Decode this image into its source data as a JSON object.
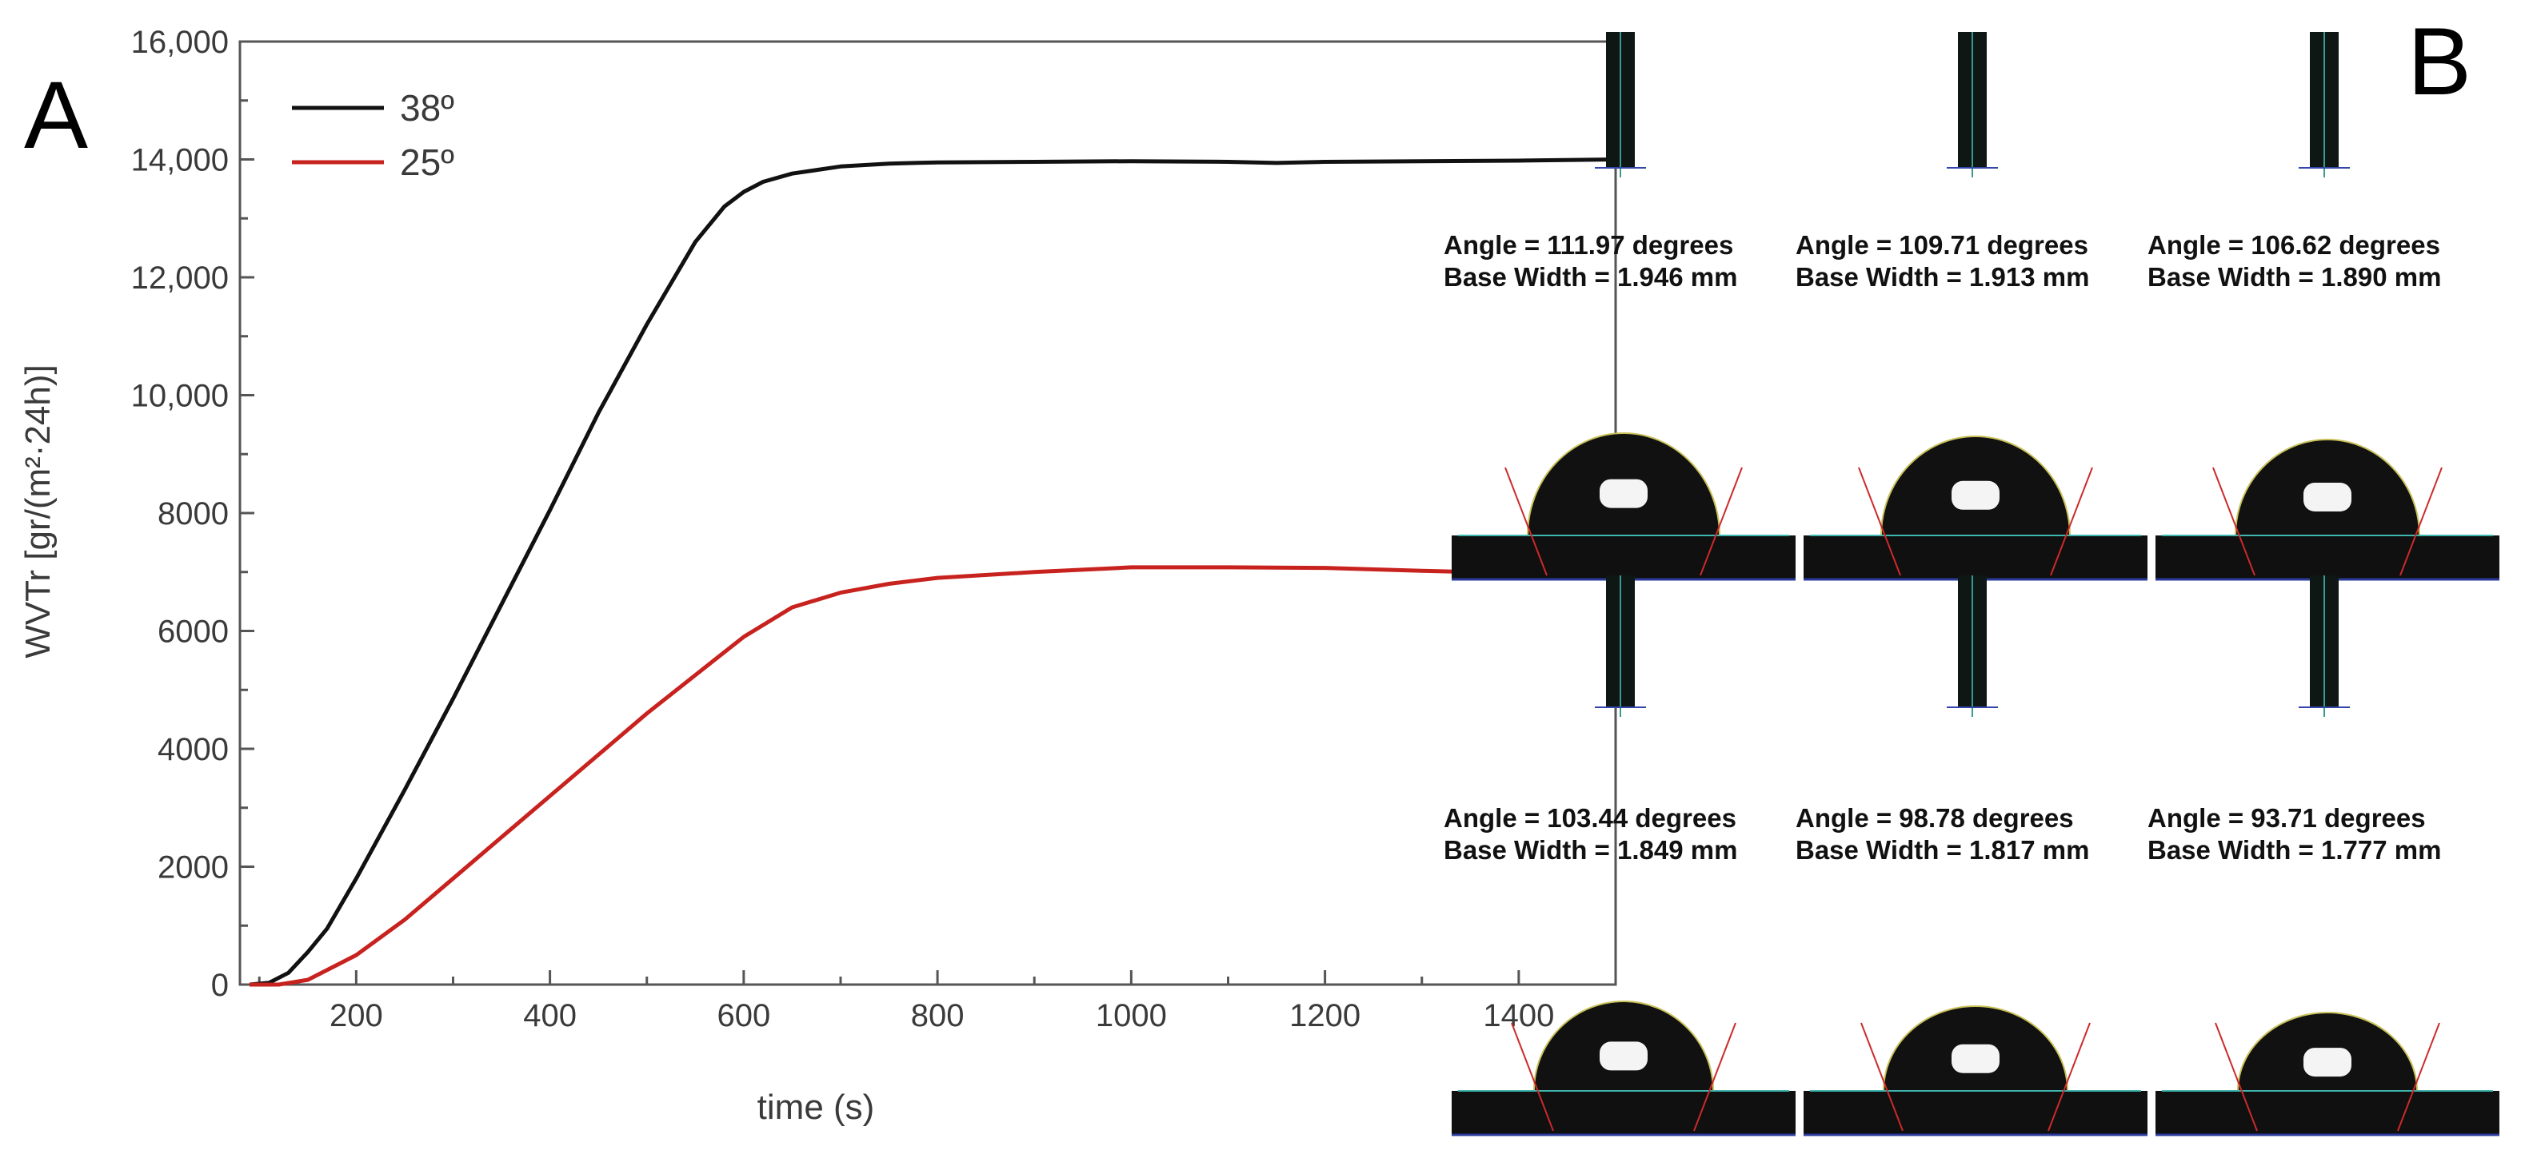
{
  "panels": {
    "a_label": "A",
    "b_label": "B"
  },
  "chart_data": {
    "type": "line",
    "title": "",
    "xlabel": "time (s)",
    "ylabel": "WVTr [gr/(m²·24h)]",
    "xlim": [
      80,
      1500
    ],
    "ylim": [
      0,
      16000
    ],
    "x_ticks": [
      200,
      400,
      600,
      800,
      1000,
      1200,
      1400
    ],
    "x_tick_labels": [
      "200",
      "400",
      "600",
      "800",
      "1000",
      "1200",
      "1400"
    ],
    "y_ticks": [
      0,
      2000,
      4000,
      6000,
      8000,
      10000,
      12000,
      14000,
      16000
    ],
    "y_tick_labels": [
      "0",
      "2000",
      "4000",
      "6000",
      "8000",
      "10,000",
      "12,000",
      "14,000",
      "16,000"
    ],
    "grid": false,
    "legend_position": "top-left",
    "series": [
      {
        "name": "38º",
        "color": "#111111",
        "x": [
          90,
          110,
          130,
          150,
          170,
          200,
          250,
          300,
          350,
          400,
          450,
          500,
          550,
          580,
          600,
          620,
          650,
          700,
          750,
          800,
          900,
          1000,
          1100,
          1150,
          1200,
          1300,
          1400,
          1500
        ],
        "y": [
          0,
          30,
          200,
          550,
          950,
          1800,
          3300,
          4850,
          6450,
          8050,
          9700,
          11200,
          12600,
          13200,
          13450,
          13620,
          13760,
          13880,
          13930,
          13950,
          13960,
          13970,
          13960,
          13940,
          13960,
          13970,
          13980,
          14000
        ]
      },
      {
        "name": "25º",
        "color": "#c8221f",
        "x": [
          90,
          120,
          150,
          200,
          250,
          300,
          350,
          400,
          450,
          500,
          550,
          600,
          650,
          700,
          750,
          800,
          900,
          1000,
          1100,
          1200,
          1300,
          1400,
          1500
        ],
        "y": [
          0,
          0,
          80,
          500,
          1100,
          1800,
          2500,
          3200,
          3900,
          4600,
          5250,
          5900,
          6400,
          6650,
          6800,
          6900,
          7000,
          7080,
          7080,
          7070,
          7020,
          6980,
          6950
        ]
      }
    ]
  },
  "droplets": [
    {
      "angle": "Angle =  111.97 degrees",
      "width": "Base Width =  1.946  mm"
    },
    {
      "angle": "Angle =  109.71 degrees",
      "width": "Base Width =  1.913  mm"
    },
    {
      "angle": "Angle =  106.62 degrees",
      "width": "Base Width =  1.890  mm"
    },
    {
      "angle": "Angle =  103.44 degrees",
      "width": "Base Width =  1.849  mm"
    },
    {
      "angle": "Angle =  98.78 degrees",
      "width": "Base Width =  1.817  mm"
    },
    {
      "angle": "Angle =  93.71 degrees",
      "width": "Base Width =  1.777  mm"
    }
  ]
}
